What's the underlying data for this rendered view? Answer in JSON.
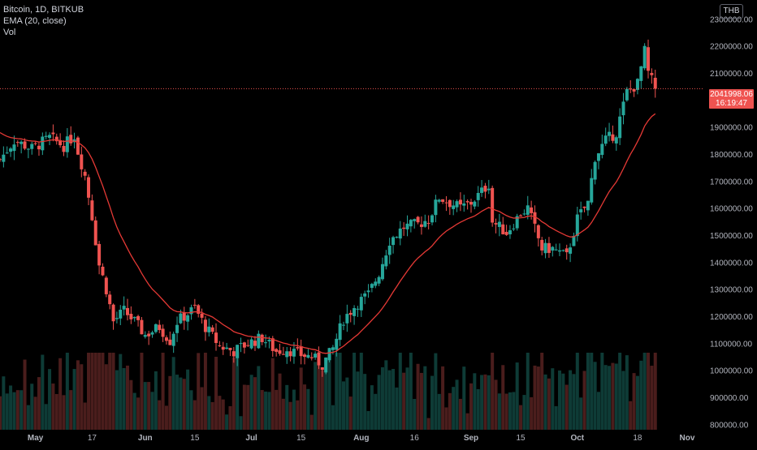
{
  "legend": {
    "symbol": "Bitcoin, 1D, BITKUB",
    "indicator": "EMA (20, close)",
    "volume": "Vol"
  },
  "currency": "THB",
  "last_price": {
    "price": "2041998.06",
    "countdown": "16:19:47",
    "value": 2041998.06
  },
  "colors": {
    "up": "#26a69a",
    "down": "#ef5350",
    "ema": "#e53935",
    "background": "#000000",
    "axis_text": "#b2b5be"
  },
  "chart_data": {
    "type": "candlestick",
    "y_axis": {
      "ylim": [
        780000,
        2370000
      ],
      "ticks": [
        800000,
        900000,
        1000000,
        1100000,
        1200000,
        1300000,
        1400000,
        1500000,
        1600000,
        1700000,
        1800000,
        1900000,
        2000000,
        2100000,
        2200000,
        2300000
      ],
      "tick_labels": [
        "800000.00",
        "900000.00",
        "1000000.00",
        "1100000.00",
        "1200000.00",
        "1300000.00",
        "1400000.00",
        "1500000.00",
        "1600000.00",
        "1700000.00",
        "1800000.00",
        "1900000.00",
        "2000000.00",
        "2100000.00",
        "2200000.00",
        "2300000.00"
      ]
    },
    "x_axis": {
      "start": "2021-04-21",
      "end": "2021-11-01",
      "ticks": [
        {
          "date": "2021-05-01",
          "label": "May"
        },
        {
          "date": "2021-05-17",
          "label": "17"
        },
        {
          "date": "2021-06-01",
          "label": "Jun"
        },
        {
          "date": "2021-06-15",
          "label": "15"
        },
        {
          "date": "2021-07-01",
          "label": "Jul"
        },
        {
          "date": "2021-07-15",
          "label": "15"
        },
        {
          "date": "2021-08-01",
          "label": "Aug"
        },
        {
          "date": "2021-08-16",
          "label": "16"
        },
        {
          "date": "2021-09-01",
          "label": "Sep"
        },
        {
          "date": "2021-09-15",
          "label": "15"
        },
        {
          "date": "2021-10-01",
          "label": "Oct"
        },
        {
          "date": "2021-10-18",
          "label": "18"
        },
        {
          "date": "2021-11-01",
          "label": "Nov"
        }
      ]
    },
    "series": {
      "price_anchors": [
        [
          "2021-04-21",
          1780000
        ],
        [
          "2021-04-25",
          1850000
        ],
        [
          "2021-04-30",
          1820000
        ],
        [
          "2021-05-05",
          1860000
        ],
        [
          "2021-05-09",
          1830000
        ],
        [
          "2021-05-12",
          1870000
        ],
        [
          "2021-05-13",
          1810000
        ],
        [
          "2021-05-15",
          1720000
        ],
        [
          "2021-05-17",
          1570000
        ],
        [
          "2021-05-19",
          1390000
        ],
        [
          "2021-05-21",
          1300000
        ],
        [
          "2021-05-23",
          1180000
        ],
        [
          "2021-05-26",
          1220000
        ],
        [
          "2021-05-29",
          1180000
        ],
        [
          "2021-06-01",
          1130000
        ],
        [
          "2021-06-05",
          1160000
        ],
        [
          "2021-06-08",
          1110000
        ],
        [
          "2021-06-10",
          1180000
        ],
        [
          "2021-06-13",
          1210000
        ],
        [
          "2021-06-15",
          1230000
        ],
        [
          "2021-06-18",
          1160000
        ],
        [
          "2021-06-22",
          1090000
        ],
        [
          "2021-06-26",
          1070000
        ],
        [
          "2021-06-30",
          1100000
        ],
        [
          "2021-07-04",
          1120000
        ],
        [
          "2021-07-08",
          1070000
        ],
        [
          "2021-07-11",
          1080000
        ],
        [
          "2021-07-14",
          1060000
        ],
        [
          "2021-07-18",
          1050000
        ],
        [
          "2021-07-21",
          1020000
        ],
        [
          "2021-07-24",
          1080000
        ],
        [
          "2021-07-27",
          1190000
        ],
        [
          "2021-07-31",
          1250000
        ],
        [
          "2021-08-03",
          1280000
        ],
        [
          "2021-08-06",
          1360000
        ],
        [
          "2021-08-09",
          1480000
        ],
        [
          "2021-08-13",
          1530000
        ],
        [
          "2021-08-17",
          1540000
        ],
        [
          "2021-08-20",
          1560000
        ],
        [
          "2021-08-23",
          1640000
        ],
        [
          "2021-08-26",
          1620000
        ],
        [
          "2021-08-29",
          1600000
        ],
        [
          "2021-09-01",
          1620000
        ],
        [
          "2021-09-04",
          1660000
        ],
        [
          "2021-09-06",
          1690000
        ],
        [
          "2021-09-07",
          1550000
        ],
        [
          "2021-09-11",
          1510000
        ],
        [
          "2021-09-15",
          1580000
        ],
        [
          "2021-09-17",
          1600000
        ],
        [
          "2021-09-21",
          1450000
        ],
        [
          "2021-09-24",
          1450000
        ],
        [
          "2021-09-28",
          1420000
        ],
        [
          "2021-10-01",
          1560000
        ],
        [
          "2021-10-04",
          1620000
        ],
        [
          "2021-10-06",
          1790000
        ],
        [
          "2021-10-09",
          1850000
        ],
        [
          "2021-10-12",
          1880000
        ],
        [
          "2021-10-15",
          2030000
        ],
        [
          "2021-10-18",
          2060000
        ],
        [
          "2021-10-20",
          2180000
        ],
        [
          "2021-10-21",
          2100000
        ],
        [
          "2021-10-23",
          2042000
        ]
      ],
      "ema_start": [
        "2021-04-21",
        1890000
      ]
    }
  }
}
